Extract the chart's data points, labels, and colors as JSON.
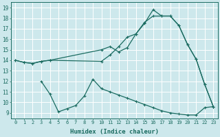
{
  "xlabel": "Humidex (Indice chaleur)",
  "xlim": [
    -0.5,
    23.5
  ],
  "ylim": [
    8.5,
    19.5
  ],
  "xticks": [
    0,
    1,
    2,
    3,
    4,
    5,
    6,
    7,
    8,
    9,
    10,
    11,
    12,
    13,
    14,
    15,
    16,
    17,
    18,
    19,
    20,
    21,
    22,
    23
  ],
  "yticks": [
    9,
    10,
    11,
    12,
    13,
    14,
    15,
    16,
    17,
    18,
    19
  ],
  "bg_color": "#cde8ec",
  "line_color": "#1a6b60",
  "line1_x": [
    0,
    1,
    2,
    3,
    4,
    10,
    11,
    12,
    13,
    14,
    15,
    16,
    17,
    18,
    19,
    20,
    21,
    22,
    23
  ],
  "line1_y": [
    14.0,
    13.8,
    13.7,
    13.9,
    14.0,
    15.0,
    15.3,
    14.8,
    15.2,
    16.5,
    17.5,
    18.8,
    18.2,
    18.2,
    17.3,
    15.5,
    14.1,
    11.7,
    9.6
  ],
  "line2_x": [
    0,
    1,
    2,
    3,
    4,
    10,
    11,
    12,
    13,
    14,
    15,
    16,
    17,
    18,
    19,
    20,
    21,
    22,
    23
  ],
  "line2_y": [
    14.0,
    13.8,
    13.7,
    13.9,
    14.0,
    13.9,
    14.5,
    15.3,
    16.2,
    16.5,
    17.6,
    18.2,
    18.2,
    18.2,
    17.3,
    15.5,
    14.1,
    11.7,
    9.6
  ],
  "line3_x": [
    3,
    4,
    5,
    6,
    7,
    8,
    9,
    10,
    11,
    12,
    13,
    14,
    15,
    16,
    17,
    18,
    19,
    20,
    21,
    22,
    23
  ],
  "line3_y": [
    12.0,
    10.8,
    9.1,
    9.4,
    9.7,
    10.6,
    12.2,
    11.3,
    11.0,
    10.7,
    10.4,
    10.1,
    9.8,
    9.5,
    9.2,
    9.0,
    8.9,
    8.8,
    8.8,
    9.5,
    9.6
  ]
}
